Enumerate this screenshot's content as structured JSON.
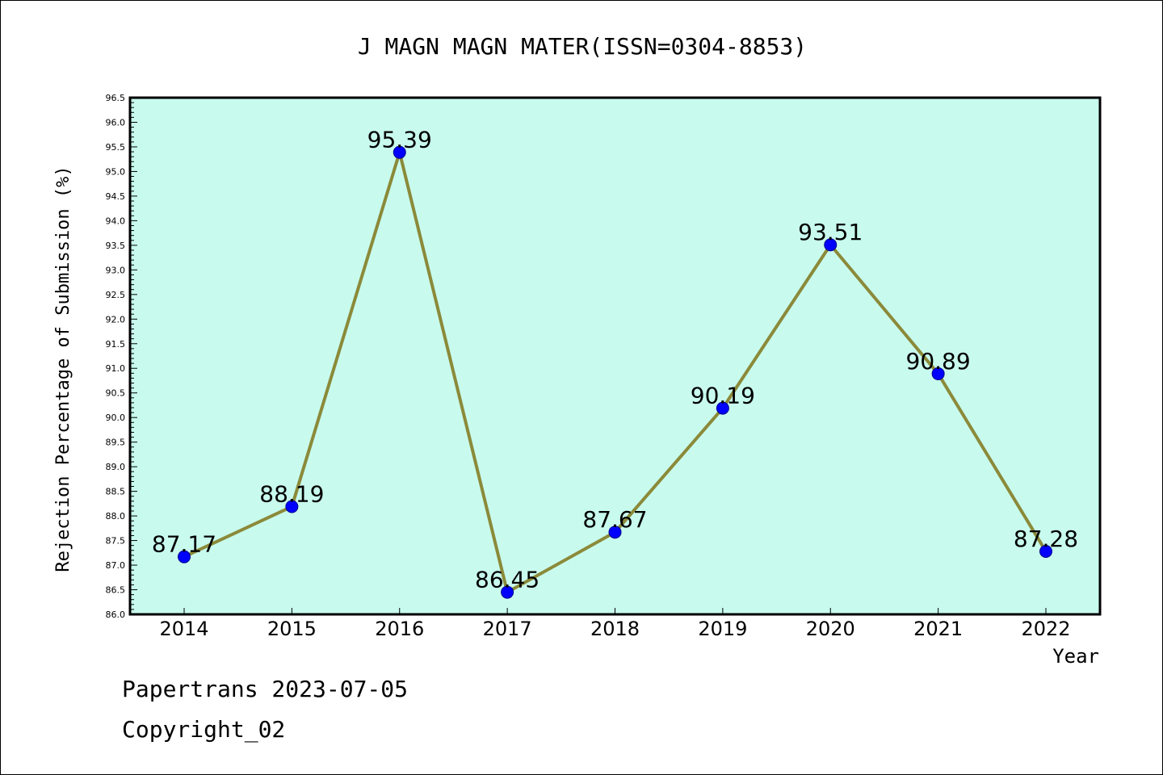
{
  "chart_data": {
    "type": "line",
    "title": "J MAGN MAGN MATER(ISSN=0304-8853)",
    "xlabel": "Year",
    "ylabel": "Rejection Percentage of Submission (%)",
    "categories": [
      "2014",
      "2015",
      "2016",
      "2017",
      "2018",
      "2019",
      "2020",
      "2021",
      "2022"
    ],
    "series": [
      {
        "values": [
          87.17,
          88.19,
          95.39,
          86.45,
          87.67,
          90.19,
          93.51,
          90.89,
          87.28
        ]
      }
    ],
    "data_labels": [
      "87.17",
      "88.19",
      "95.39",
      "86.45",
      "87.67",
      "90.19",
      "93.51",
      "90.89",
      "87.28"
    ],
    "ylim": [
      86.0,
      96.5
    ],
    "y_ticks": [
      "86.0",
      "86.5",
      "87.0",
      "87.5",
      "88.0",
      "88.5",
      "89.0",
      "89.5",
      "90.0",
      "90.5",
      "91.0",
      "91.5",
      "92.0",
      "92.5",
      "93.0",
      "93.5",
      "94.0",
      "94.5",
      "95.0",
      "95.5",
      "96.0",
      "96.5"
    ],
    "grid": false,
    "colors": {
      "plot_background": "#c8fbee",
      "line": "#8b8a3a",
      "marker": "#0000ff"
    }
  },
  "footer": {
    "line1": "Papertrans 2023-07-05",
    "line2": "Copyright_02"
  }
}
